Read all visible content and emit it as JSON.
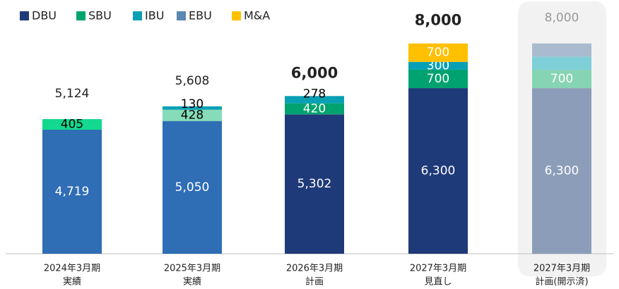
{
  "chart_data": {
    "type": "stacked_bar",
    "categories": [
      [
        "2024年3月期",
        "実績"
      ],
      [
        "2025年3月期",
        "実績"
      ],
      [
        "2026年3月期",
        "計画"
      ],
      [
        "2027年3月期",
        "見直し"
      ],
      [
        "2027年3月期",
        "計画(開示済)"
      ]
    ],
    "series": [
      {
        "name": "DBU",
        "color": "#1f3a78",
        "colors": [
          "#2f6db5",
          "#2f6db5",
          "#1f3a78",
          "#1f3a78",
          "#8c9db9"
        ],
        "label_colors": [
          "#fff",
          "#fff",
          "#fff",
          "#fff",
          "#fff"
        ],
        "values": [
          4719,
          5050,
          5302,
          6300,
          6300
        ],
        "value_labels": [
          "4,719",
          "5,050",
          "5,302",
          "6,300",
          "6,300"
        ]
      },
      {
        "name": "SBU",
        "color": "#00a36f",
        "colors": [
          "#13d98f",
          "#86dcb8",
          "#00a36f",
          "#00a36f",
          "#86d4b4"
        ],
        "label_colors": [
          "#000",
          "#000",
          "#fff",
          "#fff",
          "#fff"
        ],
        "values": [
          405,
          428,
          420,
          700,
          700
        ],
        "value_labels": [
          "405",
          "428",
          "420",
          "700",
          "700"
        ]
      },
      {
        "name": "IBU",
        "color": "#0aa0b4",
        "colors": [
          "#0aa0b4",
          "#0aa0b4",
          "#0aa0b4",
          "#0aa0b4",
          "#7fcfd8"
        ],
        "label_colors": [
          "#000",
          "#000",
          "#000",
          "#fff",
          "#fff"
        ],
        "values": [
          null,
          130,
          278,
          300,
          500
        ],
        "value_labels": [
          null,
          "130",
          "278",
          "300",
          null
        ]
      },
      {
        "name": "EBU",
        "color": "#5b87b0",
        "colors": [
          "#5b87b0",
          "#5b87b0",
          "#5b87b0",
          "#5b87b0",
          "#a9bccf"
        ],
        "label_colors": [
          "#fff",
          "#fff",
          "#fff",
          "#fff",
          "#fff"
        ],
        "values": [
          null,
          null,
          null,
          null,
          500
        ],
        "value_labels": [
          null,
          null,
          null,
          null,
          null
        ]
      },
      {
        "name": "M&A",
        "color": "#ffc000",
        "colors": [
          "#ffc000",
          "#ffc000",
          "#ffc000",
          "#ffc000",
          "#ffe08a"
        ],
        "label_colors": [
          "#000",
          "#000",
          "#000",
          "#fff",
          "#000"
        ],
        "values": [
          null,
          null,
          null,
          700,
          null
        ],
        "value_labels": [
          null,
          null,
          null,
          "700",
          null
        ]
      }
    ],
    "totals": [
      5124,
      5608,
      6000,
      8000,
      8000
    ],
    "total_labels": [
      "5,124",
      "5,608",
      "6,000",
      "8,000",
      "8,000"
    ],
    "total_bold": [
      false,
      false,
      true,
      true,
      false
    ],
    "total_colors": [
      "#222",
      "#222",
      "#222",
      "#222",
      "#999"
    ],
    "ylim": [
      0,
      9600
    ]
  }
}
